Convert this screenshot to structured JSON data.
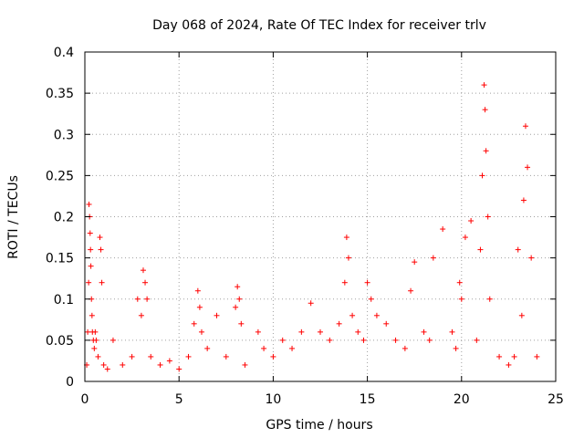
{
  "chart_data": {
    "type": "scatter",
    "title": "Day 068 of 2024, Rate Of TEC Index for receiver trlv",
    "xlabel": "GPS time / hours",
    "ylabel": "ROTI / TECUs",
    "xlim": [
      0,
      25
    ],
    "ylim": [
      0,
      0.4
    ],
    "x_ticks": [
      0,
      5,
      10,
      15,
      20,
      25
    ],
    "x_tick_labels": [
      "0",
      "5",
      "10",
      "15",
      "20",
      "25"
    ],
    "y_ticks": [
      0,
      0.05,
      0.1,
      0.15,
      0.2,
      0.25,
      0.3,
      0.35,
      0.4
    ],
    "y_tick_labels": [
      "0",
      "0.05",
      "0.1",
      "0.15",
      "0.2",
      "0.25",
      "0.3",
      "0.35",
      "0.4"
    ],
    "grid": true,
    "marker": "plus",
    "color": "#ff0000",
    "data_gap": [
      8.6,
      9.1
    ],
    "series": [
      {
        "name": "ROTI",
        "x": [
          0.1,
          0.15,
          0.2,
          0.22,
          0.25,
          0.28,
          0.3,
          0.32,
          0.35,
          0.38,
          0.4,
          0.45,
          0.5,
          0.55,
          0.6,
          0.7,
          0.8,
          0.85,
          0.9,
          1.0,
          1.2,
          1.5,
          2.0,
          2.5,
          2.8,
          3.0,
          3.1,
          3.2,
          3.3,
          3.5,
          4.0,
          4.5,
          5.0,
          5.5,
          5.8,
          6.0,
          6.1,
          6.2,
          6.5,
          7.0,
          7.5,
          8.0,
          8.1,
          8.2,
          8.3,
          8.5,
          9.2,
          9.5,
          10.0,
          10.5,
          11.0,
          11.5,
          12.0,
          12.5,
          13.0,
          13.5,
          13.8,
          13.9,
          14.0,
          14.2,
          14.5,
          14.8,
          15.0,
          15.2,
          15.5,
          16.0,
          16.5,
          17.0,
          17.3,
          17.5,
          18.0,
          18.3,
          18.5,
          19.0,
          19.5,
          19.7,
          19.9,
          20.0,
          20.2,
          20.5,
          20.8,
          21.0,
          21.1,
          21.2,
          21.25,
          21.3,
          21.4,
          21.5,
          22.0,
          22.5,
          22.8,
          23.0,
          23.2,
          23.3,
          23.4,
          23.5,
          23.7,
          24.0
        ],
        "y": [
          0.02,
          0.06,
          0.12,
          0.215,
          0.2,
          0.18,
          0.16,
          0.14,
          0.1,
          0.08,
          0.06,
          0.05,
          0.04,
          0.06,
          0.05,
          0.03,
          0.175,
          0.16,
          0.12,
          0.02,
          0.015,
          0.05,
          0.02,
          0.03,
          0.1,
          0.08,
          0.135,
          0.12,
          0.1,
          0.03,
          0.02,
          0.025,
          0.015,
          0.03,
          0.07,
          0.11,
          0.09,
          0.06,
          0.04,
          0.08,
          0.03,
          0.09,
          0.115,
          0.1,
          0.07,
          0.02,
          0.06,
          0.04,
          0.03,
          0.05,
          0.04,
          0.06,
          0.095,
          0.06,
          0.05,
          0.07,
          0.12,
          0.175,
          0.15,
          0.08,
          0.06,
          0.05,
          0.12,
          0.1,
          0.08,
          0.07,
          0.05,
          0.04,
          0.11,
          0.145,
          0.06,
          0.05,
          0.15,
          0.185,
          0.06,
          0.04,
          0.12,
          0.1,
          0.175,
          0.195,
          0.05,
          0.16,
          0.25,
          0.36,
          0.33,
          0.28,
          0.2,
          0.1,
          0.03,
          0.02,
          0.03,
          0.16,
          0.08,
          0.22,
          0.31,
          0.26,
          0.15,
          0.03
        ]
      }
    ]
  }
}
